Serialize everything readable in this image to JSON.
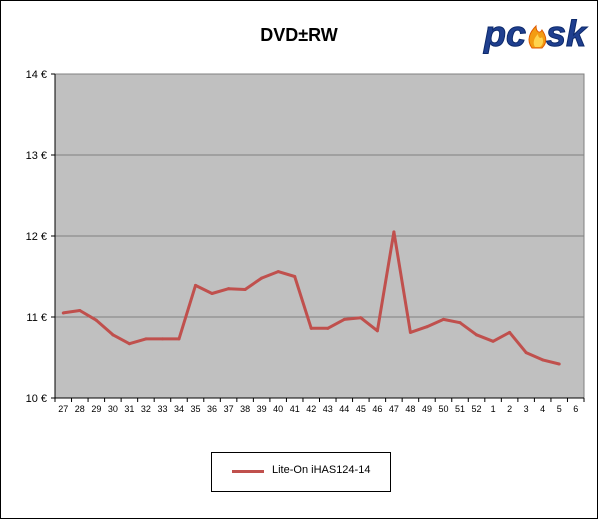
{
  "chart_data": {
    "type": "line",
    "title": "DVD±RW",
    "xlabel": "",
    "ylabel": "",
    "categories": [
      "27",
      "28",
      "29",
      "30",
      "31",
      "32",
      "33",
      "34",
      "35",
      "36",
      "37",
      "38",
      "39",
      "40",
      "41",
      "42",
      "43",
      "44",
      "45",
      "46",
      "47",
      "48",
      "49",
      "50",
      "51",
      "52",
      "1",
      "2",
      "3",
      "4",
      "5",
      "6"
    ],
    "series": [
      {
        "name": "Lite-On  iHAS124-14",
        "color": "#c0504d",
        "values": [
          11.05,
          11.08,
          10.96,
          10.78,
          10.67,
          10.73,
          10.73,
          10.73,
          11.39,
          11.29,
          11.35,
          11.34,
          11.48,
          11.56,
          11.5,
          10.86,
          10.86,
          10.97,
          10.99,
          10.83,
          12.05,
          10.81,
          10.88,
          10.97,
          10.93,
          10.78,
          10.7,
          10.81,
          10.56,
          10.47,
          10.42,
          null
        ]
      }
    ],
    "ylim": [
      10,
      14
    ],
    "yticks": [
      "10 €",
      "11 €",
      "12 €",
      "13 €",
      "14 €"
    ],
    "grid": true,
    "plot_background": "#c0c0c0",
    "legend_position": "bottom"
  },
  "logo": {
    "text": "pcsk"
  }
}
